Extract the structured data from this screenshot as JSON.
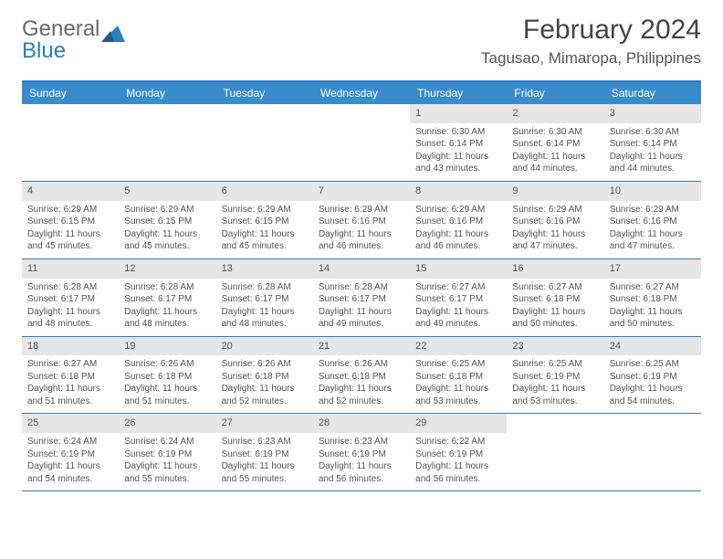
{
  "logo": {
    "text1": "General",
    "text2": "Blue"
  },
  "title": "February 2024",
  "location": "Tagusao, Mimaropa, Philippines",
  "colors": {
    "header_bg": "#3a8bcb",
    "header_text": "#ffffff",
    "border": "#2e7cc0",
    "numrow_bg": "#e6e6e6",
    "text": "#555555"
  },
  "day_names": [
    "Sunday",
    "Monday",
    "Tuesday",
    "Wednesday",
    "Thursday",
    "Friday",
    "Saturday"
  ],
  "weeks": [
    [
      {
        "n": "",
        "sr": "",
        "ss": "",
        "dl": ""
      },
      {
        "n": "",
        "sr": "",
        "ss": "",
        "dl": ""
      },
      {
        "n": "",
        "sr": "",
        "ss": "",
        "dl": ""
      },
      {
        "n": "",
        "sr": "",
        "ss": "",
        "dl": ""
      },
      {
        "n": "1",
        "sr": "Sunrise: 6:30 AM",
        "ss": "Sunset: 6:14 PM",
        "dl": "Daylight: 11 hours and 43 minutes."
      },
      {
        "n": "2",
        "sr": "Sunrise: 6:30 AM",
        "ss": "Sunset: 6:14 PM",
        "dl": "Daylight: 11 hours and 44 minutes."
      },
      {
        "n": "3",
        "sr": "Sunrise: 6:30 AM",
        "ss": "Sunset: 6:14 PM",
        "dl": "Daylight: 11 hours and 44 minutes."
      }
    ],
    [
      {
        "n": "4",
        "sr": "Sunrise: 6:29 AM",
        "ss": "Sunset: 6:15 PM",
        "dl": "Daylight: 11 hours and 45 minutes."
      },
      {
        "n": "5",
        "sr": "Sunrise: 6:29 AM",
        "ss": "Sunset: 6:15 PM",
        "dl": "Daylight: 11 hours and 45 minutes."
      },
      {
        "n": "6",
        "sr": "Sunrise: 6:29 AM",
        "ss": "Sunset: 6:15 PM",
        "dl": "Daylight: 11 hours and 45 minutes."
      },
      {
        "n": "7",
        "sr": "Sunrise: 6:29 AM",
        "ss": "Sunset: 6:16 PM",
        "dl": "Daylight: 11 hours and 46 minutes."
      },
      {
        "n": "8",
        "sr": "Sunrise: 6:29 AM",
        "ss": "Sunset: 6:16 PM",
        "dl": "Daylight: 11 hours and 46 minutes."
      },
      {
        "n": "9",
        "sr": "Sunrise: 6:29 AM",
        "ss": "Sunset: 6:16 PM",
        "dl": "Daylight: 11 hours and 47 minutes."
      },
      {
        "n": "10",
        "sr": "Sunrise: 6:29 AM",
        "ss": "Sunset: 6:16 PM",
        "dl": "Daylight: 11 hours and 47 minutes."
      }
    ],
    [
      {
        "n": "11",
        "sr": "Sunrise: 6:28 AM",
        "ss": "Sunset: 6:17 PM",
        "dl": "Daylight: 11 hours and 48 minutes."
      },
      {
        "n": "12",
        "sr": "Sunrise: 6:28 AM",
        "ss": "Sunset: 6:17 PM",
        "dl": "Daylight: 11 hours and 48 minutes."
      },
      {
        "n": "13",
        "sr": "Sunrise: 6:28 AM",
        "ss": "Sunset: 6:17 PM",
        "dl": "Daylight: 11 hours and 48 minutes."
      },
      {
        "n": "14",
        "sr": "Sunrise: 6:28 AM",
        "ss": "Sunset: 6:17 PM",
        "dl": "Daylight: 11 hours and 49 minutes."
      },
      {
        "n": "15",
        "sr": "Sunrise: 6:27 AM",
        "ss": "Sunset: 6:17 PM",
        "dl": "Daylight: 11 hours and 49 minutes."
      },
      {
        "n": "16",
        "sr": "Sunrise: 6:27 AM",
        "ss": "Sunset: 6:18 PM",
        "dl": "Daylight: 11 hours and 50 minutes."
      },
      {
        "n": "17",
        "sr": "Sunrise: 6:27 AM",
        "ss": "Sunset: 6:18 PM",
        "dl": "Daylight: 11 hours and 50 minutes."
      }
    ],
    [
      {
        "n": "18",
        "sr": "Sunrise: 6:27 AM",
        "ss": "Sunset: 6:18 PM",
        "dl": "Daylight: 11 hours and 51 minutes."
      },
      {
        "n": "19",
        "sr": "Sunrise: 6:26 AM",
        "ss": "Sunset: 6:18 PM",
        "dl": "Daylight: 11 hours and 51 minutes."
      },
      {
        "n": "20",
        "sr": "Sunrise: 6:26 AM",
        "ss": "Sunset: 6:18 PM",
        "dl": "Daylight: 11 hours and 52 minutes."
      },
      {
        "n": "21",
        "sr": "Sunrise: 6:26 AM",
        "ss": "Sunset: 6:18 PM",
        "dl": "Daylight: 11 hours and 52 minutes."
      },
      {
        "n": "22",
        "sr": "Sunrise: 6:25 AM",
        "ss": "Sunset: 6:18 PM",
        "dl": "Daylight: 11 hours and 53 minutes."
      },
      {
        "n": "23",
        "sr": "Sunrise: 6:25 AM",
        "ss": "Sunset: 6:19 PM",
        "dl": "Daylight: 11 hours and 53 minutes."
      },
      {
        "n": "24",
        "sr": "Sunrise: 6:25 AM",
        "ss": "Sunset: 6:19 PM",
        "dl": "Daylight: 11 hours and 54 minutes."
      }
    ],
    [
      {
        "n": "25",
        "sr": "Sunrise: 6:24 AM",
        "ss": "Sunset: 6:19 PM",
        "dl": "Daylight: 11 hours and 54 minutes."
      },
      {
        "n": "26",
        "sr": "Sunrise: 6:24 AM",
        "ss": "Sunset: 6:19 PM",
        "dl": "Daylight: 11 hours and 55 minutes."
      },
      {
        "n": "27",
        "sr": "Sunrise: 6:23 AM",
        "ss": "Sunset: 6:19 PM",
        "dl": "Daylight: 11 hours and 55 minutes."
      },
      {
        "n": "28",
        "sr": "Sunrise: 6:23 AM",
        "ss": "Sunset: 6:19 PM",
        "dl": "Daylight: 11 hours and 56 minutes."
      },
      {
        "n": "29",
        "sr": "Sunrise: 6:22 AM",
        "ss": "Sunset: 6:19 PM",
        "dl": "Daylight: 11 hours and 56 minutes."
      },
      {
        "n": "",
        "sr": "",
        "ss": "",
        "dl": ""
      },
      {
        "n": "",
        "sr": "",
        "ss": "",
        "dl": ""
      }
    ]
  ]
}
